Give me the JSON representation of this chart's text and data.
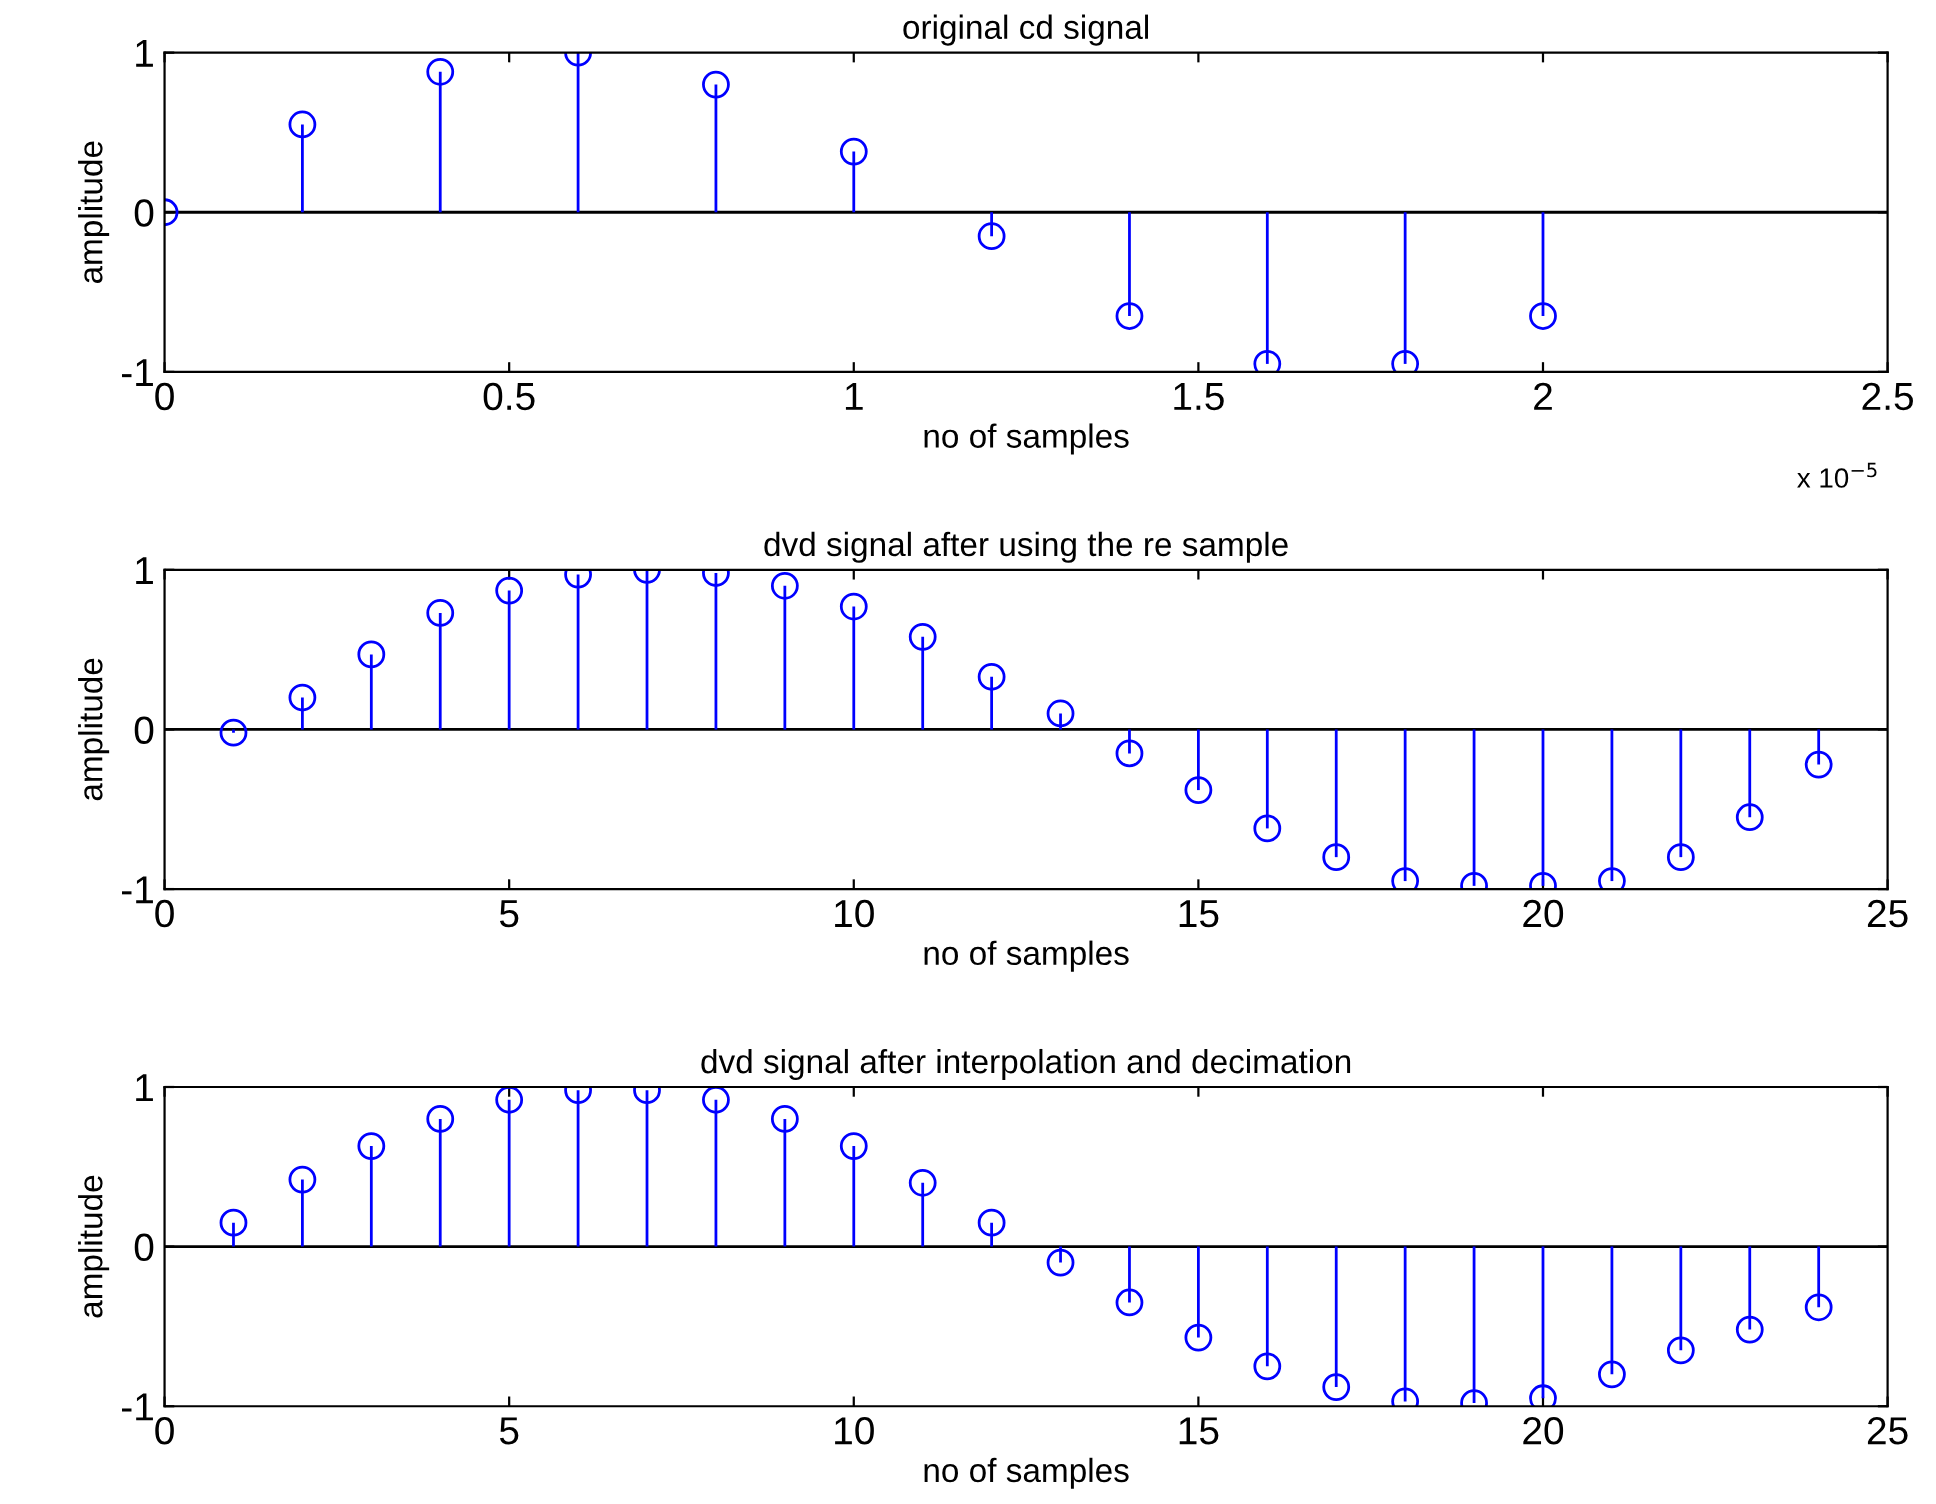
{
  "chart_data": [
    {
      "type": "lollipop",
      "title": "original cd signal",
      "xlabel": "no of samples",
      "ylabel": "amplitude",
      "marker": "circle",
      "grid": false,
      "x": [
        0,
        0.2,
        0.4,
        0.6,
        0.8,
        1.0,
        1.2,
        1.4,
        1.6,
        1.8,
        2.0
      ],
      "ref_lines": [
        {
          "axis": "y",
          "value": 0,
          "color": "#000000"
        }
      ],
      "series": [
        {
          "color": "#0000ff",
          "values": [
            0,
            0.55,
            0.88,
            1.0,
            0.8,
            0.38,
            -0.15,
            -0.65,
            -0.95,
            -0.95,
            -0.65
          ]
        }
      ],
      "xlim": [
        0,
        2.5
      ],
      "xticks": [
        0,
        0.5,
        1,
        1.5,
        2,
        2.5
      ],
      "ylim": [
        -1,
        1
      ],
      "yticks": [
        -1,
        0,
        1
      ],
      "annotations": [
        "x 10$^{−5}$"
      ]
    },
    {
      "type": "lollipop",
      "title": "dvd signal after using the re sample",
      "xlabel": "no of samples",
      "ylabel": "amplitude",
      "marker": "circle",
      "grid": false,
      "ref_lines": [
        {
          "axis": "y",
          "value": 0,
          "color": "#000000"
        }
      ],
      "x": [
        1,
        2,
        3,
        4,
        5,
        6,
        7,
        8,
        9,
        10,
        11,
        12,
        13,
        14,
        15,
        16,
        17,
        18,
        19,
        20,
        21,
        22,
        23,
        24
      ],
      "series": [
        {
          "color": "#0000ff",
          "values": [
            -0.02,
            0.2,
            0.47,
            0.73,
            0.87,
            0.97,
            1.0,
            0.98,
            0.9,
            0.77,
            0.58,
            0.33,
            0.1,
            -0.15,
            -0.38,
            -0.62,
            -0.8,
            -0.95,
            -0.98,
            -0.98,
            -0.95,
            -0.8,
            -0.55,
            -0.22
          ]
        }
      ],
      "xlim": [
        0,
        25
      ],
      "xticks": [
        0,
        5,
        10,
        15,
        20,
        25
      ],
      "ylim": [
        -1,
        1
      ],
      "yticks": [
        -1,
        0,
        1
      ]
    },
    {
      "type": "lollipop",
      "title": "dvd signal after interpolation and decimation",
      "xlabel": "no of samples",
      "ylabel": "amplitude",
      "marker": "circle",
      "grid": false,
      "ref_lines": [
        {
          "axis": "y",
          "value": 0,
          "color": "#000000"
        }
      ],
      "x": [
        1,
        2,
        3,
        4,
        5,
        6,
        7,
        8,
        9,
        10,
        11,
        12,
        13,
        14,
        15,
        16,
        17,
        18,
        19,
        20,
        21,
        22,
        23,
        24
      ],
      "series": [
        {
          "color": "#0000ff",
          "values": [
            0.15,
            0.42,
            0.63,
            0.8,
            0.92,
            0.98,
            0.98,
            0.92,
            0.8,
            0.63,
            0.4,
            0.15,
            -0.1,
            -0.35,
            -0.57,
            -0.75,
            -0.88,
            -0.97,
            -0.98,
            -0.95,
            -0.8,
            -0.65,
            -0.52,
            -0.38
          ]
        }
      ],
      "xlim": [
        0,
        25
      ],
      "xticks": [
        0,
        5,
        10,
        15,
        20,
        25
      ],
      "ylim": [
        -1,
        1
      ],
      "yticks": [
        -1,
        0,
        1
      ]
    }
  ]
}
